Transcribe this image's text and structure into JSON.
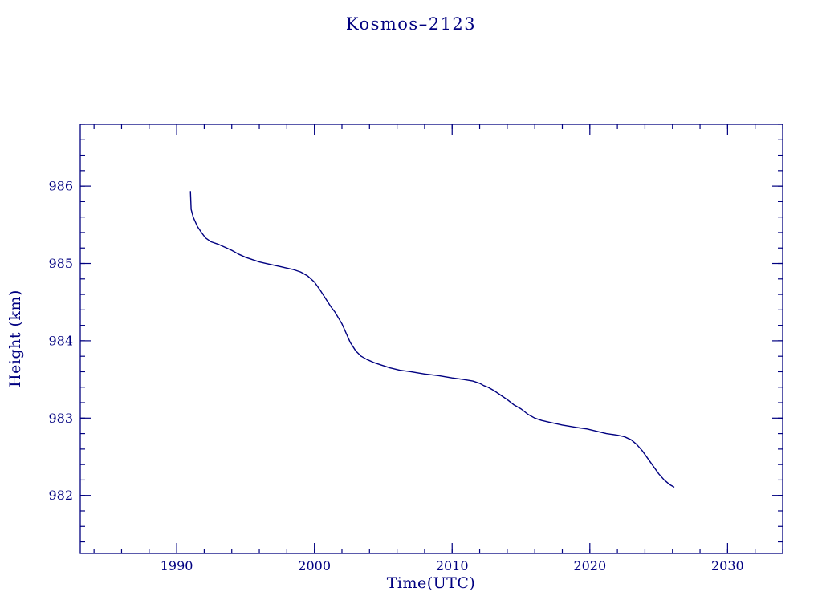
{
  "page": {
    "background_color": "#ffffff",
    "accent_color": "#000080"
  },
  "chart_data": {
    "type": "line",
    "title": "Kosmos–2123",
    "xlabel": "Time(UTC)",
    "ylabel": "Height (km)",
    "xlim": [
      1983,
      2034
    ],
    "ylim": [
      981.25,
      986.8
    ],
    "x_major_ticks": [
      1990,
      2000,
      2010,
      2020,
      2030
    ],
    "x_minor_step": 2,
    "y_major_ticks": [
      982,
      983,
      984,
      985,
      986
    ],
    "y_minor_step": 0.2,
    "grid": false,
    "legend": false,
    "line_color": "#000080",
    "series": [
      {
        "name": "height-km",
        "x": [
          1991.0,
          1991.05,
          1991.2,
          1991.5,
          1991.8,
          1992.1,
          1992.5,
          1993.0,
          1993.5,
          1994.0,
          1994.5,
          1995.0,
          1995.5,
          1996.0,
          1996.5,
          1997.0,
          1997.5,
          1998.0,
          1998.5,
          1999.0,
          1999.5,
          2000.0,
          2000.4,
          2000.8,
          2001.2,
          2001.5,
          2001.8,
          2002.0,
          2002.3,
          2002.6,
          2003.0,
          2003.4,
          2003.8,
          2004.3,
          2004.8,
          2005.5,
          2006.2,
          2007.0,
          2008.0,
          2009.0,
          2010.0,
          2010.8,
          2011.5,
          2012.0,
          2012.3,
          2012.6,
          2013.0,
          2013.5,
          2014.0,
          2014.5,
          2015.0,
          2015.5,
          2016.0,
          2016.5,
          2017.0,
          2017.5,
          2018.0,
          2019.0,
          2019.8,
          2020.5,
          2021.2,
          2022.0,
          2022.5,
          2023.0,
          2023.4,
          2023.8,
          2024.2,
          2024.6,
          2025.0,
          2025.4,
          2025.8,
          2026.1
        ],
        "y": [
          985.93,
          985.7,
          985.6,
          985.48,
          985.4,
          985.33,
          985.28,
          985.25,
          985.21,
          985.17,
          985.12,
          985.08,
          985.05,
          985.02,
          985.0,
          984.98,
          984.96,
          984.94,
          984.92,
          984.89,
          984.84,
          984.76,
          984.66,
          984.55,
          984.44,
          984.37,
          984.28,
          984.22,
          984.1,
          983.98,
          983.87,
          983.8,
          983.76,
          983.72,
          983.69,
          983.65,
          983.62,
          983.6,
          983.57,
          983.55,
          983.52,
          983.5,
          983.48,
          983.45,
          983.42,
          983.4,
          983.36,
          983.3,
          983.24,
          983.17,
          983.12,
          983.05,
          983.0,
          982.97,
          982.95,
          982.93,
          982.91,
          982.88,
          982.86,
          982.83,
          982.8,
          982.78,
          982.76,
          982.72,
          982.66,
          982.58,
          982.48,
          982.38,
          982.28,
          982.2,
          982.14,
          982.11
        ]
      }
    ]
  }
}
